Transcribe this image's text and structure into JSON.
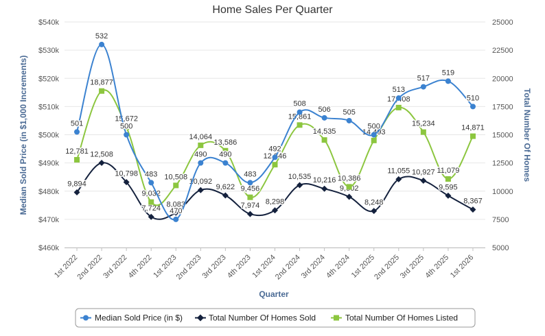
{
  "chart_data": {
    "type": "line",
    "title": "Home Sales Per Quarter",
    "xlabel": "Quarter",
    "ylabel_left": "Median Sold Price (in $1,000 Increments)",
    "ylabel_right": "Total Number Of Homes",
    "categories": [
      "1st 2022",
      "2nd 2022",
      "3rd 2022",
      "4th 2022",
      "1st 2023",
      "2nd 2023",
      "3rd 2023",
      "4th 2023",
      "1st 2024",
      "2nd 2024",
      "3rd 2024",
      "4th 2024",
      "1st 2025",
      "2nd 2025",
      "3rd 2025",
      "4th 2025",
      "1st 2026"
    ],
    "left_axis": {
      "min": 460,
      "max": 540,
      "ticks": [
        460,
        470,
        480,
        490,
        500,
        510,
        520,
        530,
        540
      ],
      "tick_labels": [
        "$460k",
        "$470k",
        "$480k",
        "$490k",
        "$500k",
        "$510k",
        "$520k",
        "$530k",
        "$540k"
      ]
    },
    "right_axis": {
      "min": 5000,
      "max": 25000,
      "ticks": [
        5000,
        7500,
        10000,
        12500,
        15000,
        17500,
        20000,
        22500,
        25000
      ],
      "tick_labels": [
        "5000",
        "7500",
        "10000",
        "12500",
        "15000",
        "17500",
        "20000",
        "22500",
        "25000"
      ]
    },
    "series": [
      {
        "name": "Median Sold Price (in $)",
        "axis": "left",
        "color": "#3b82d0",
        "marker": "circle",
        "values": [
          501,
          532,
          500,
          483,
          470,
          490,
          490,
          483,
          492,
          508,
          506,
          505,
          500,
          513,
          517,
          519,
          510
        ],
        "labels": [
          "501",
          "532",
          "500",
          "483",
          "470",
          "490",
          "490",
          "483",
          "492",
          "508",
          "506",
          "505",
          "500",
          "513",
          "517",
          "519",
          "510"
        ]
      },
      {
        "name": "Total Number Of Homes Sold",
        "axis": "right",
        "color": "#14213d",
        "marker": "diamond",
        "values": [
          9894,
          12508,
          10798,
          7724,
          8083,
          10092,
          9622,
          7974,
          8298,
          10535,
          10216,
          9502,
          8248,
          11055,
          10927,
          9595,
          8367
        ],
        "labels": [
          "9,894",
          "12,508",
          "10,798",
          "7,724",
          "8,083",
          "10,092",
          "9,622",
          "7,974",
          "8,298",
          "10,535",
          "10,216",
          "9,502",
          "8,248",
          "11,055",
          "10,927",
          "9,595",
          "8,367"
        ]
      },
      {
        "name": "Total Number Of Homes Listed",
        "axis": "right",
        "color": "#8cc63f",
        "marker": "square",
        "values": [
          12781,
          18877,
          15672,
          9032,
          10508,
          14064,
          13586,
          9456,
          12346,
          15861,
          14535,
          10386,
          14493,
          17408,
          15234,
          11079,
          14871
        ],
        "labels": [
          "12,781",
          "18,877",
          "15,672",
          "9,032",
          "10,508",
          "14,064",
          "13,586",
          "9,456",
          "12,346",
          "15,861",
          "14,535",
          "10,386",
          "14,493",
          "17,408",
          "15,234",
          "11,079",
          "14,871"
        ]
      }
    ],
    "legend_position": "bottom-center"
  },
  "colors": {
    "axis_title_color": "#4a6a94",
    "grid_color": "#e6e6e6"
  }
}
